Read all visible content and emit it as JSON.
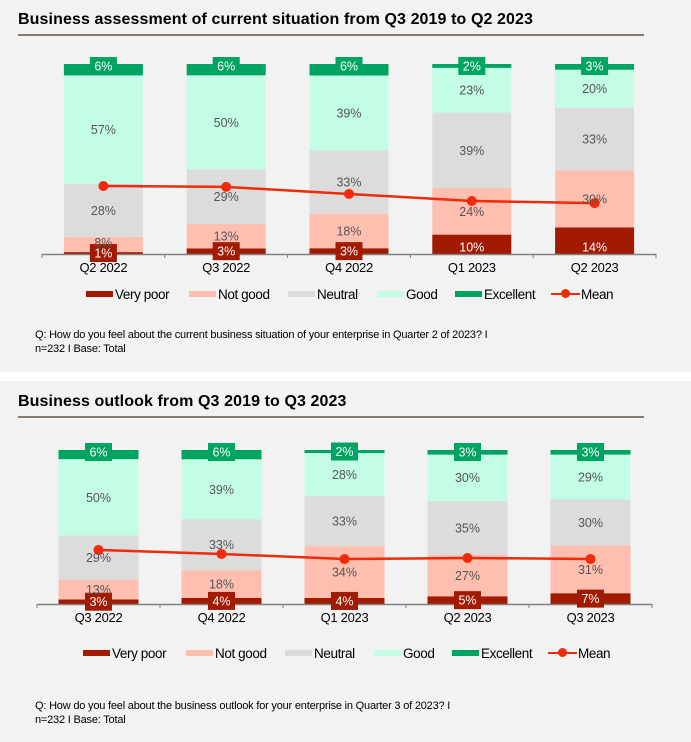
{
  "colors": {
    "very_poor": "#a21a00",
    "not_good": "#ffbfb0",
    "neutral": "#dcdcdc",
    "good": "#c3fde5",
    "excellent": "#00a462",
    "mean": "#f02a0a",
    "label_dark": "#555555",
    "label_light": "#ffffff"
  },
  "legend": [
    {
      "key": "very_poor",
      "label": "Very poor"
    },
    {
      "key": "not_good",
      "label": "Not good"
    },
    {
      "key": "neutral",
      "label": "Neutral"
    },
    {
      "key": "good",
      "label": "Good"
    },
    {
      "key": "excellent",
      "label": "Excellent"
    },
    {
      "key": "mean",
      "label": "Mean"
    }
  ],
  "panels": [
    {
      "title": "Business assessment of current situation from Q3 2019 to Q2 2023",
      "footnote": [
        "Q: How do you feel about the current business situation of your enterprise in Quarter 2 of 2023? I",
        "n=232 I Base: Total"
      ]
    },
    {
      "title": "Business outlook from Q3 2019 to Q3 2023",
      "footnote": [
        "Q: How do you feel about the business outlook for your enterprise in Quarter 3 of 2023? I",
        "n=232 I Base: Total"
      ]
    }
  ],
  "chart_data": [
    {
      "type": "bar",
      "stacked": true,
      "title": "Business assessment of current situation from Q3 2019 to Q2 2023",
      "xlabel": "",
      "ylabel": "",
      "ylim": [
        0,
        100
      ],
      "grid": false,
      "legend_position": "bottom",
      "categories": [
        "Q2 2022",
        "Q3 2022",
        "Q4 2022",
        "Q1 2023",
        "Q2 2023"
      ],
      "series": [
        {
          "name": "Very poor",
          "key": "very_poor",
          "values": [
            1,
            3,
            3,
            10,
            14
          ]
        },
        {
          "name": "Not good",
          "key": "not_good",
          "values": [
            8,
            13,
            18,
            24,
            30
          ]
        },
        {
          "name": "Neutral",
          "key": "neutral",
          "values": [
            28,
            29,
            33,
            39,
            33
          ]
        },
        {
          "name": "Good",
          "key": "good",
          "values": [
            57,
            50,
            39,
            23,
            20
          ]
        },
        {
          "name": "Excellent",
          "key": "excellent",
          "values": [
            6,
            6,
            6,
            2,
            3
          ]
        }
      ],
      "line_series": {
        "name": "Mean",
        "type": "line",
        "values_pct_of_axis": [
          35.8,
          35.3,
          31.6,
          27.9,
          26.8
        ]
      }
    },
    {
      "type": "bar",
      "stacked": true,
      "title": "Business outlook from Q3 2019 to Q3 2023",
      "xlabel": "",
      "ylabel": "",
      "ylim": [
        0,
        100
      ],
      "grid": false,
      "legend_position": "bottom",
      "categories": [
        "Q3 2022",
        "Q4 2022",
        "Q1 2023",
        "Q2 2023",
        "Q3 2023"
      ],
      "series": [
        {
          "name": "Very poor",
          "key": "very_poor",
          "values": [
            3,
            4,
            4,
            5,
            7
          ]
        },
        {
          "name": "Not good",
          "key": "not_good",
          "values": [
            13,
            18,
            34,
            27,
            31
          ]
        },
        {
          "name": "Neutral",
          "key": "neutral",
          "values": [
            29,
            33,
            33,
            35,
            30
          ]
        },
        {
          "name": "Good",
          "key": "good",
          "values": [
            50,
            39,
            28,
            30,
            29
          ]
        },
        {
          "name": "Excellent",
          "key": "excellent",
          "values": [
            6,
            6,
            2,
            3,
            3
          ]
        }
      ],
      "line_series": {
        "name": "Mean",
        "type": "line",
        "values_pct_of_axis": [
          35.1,
          32.5,
          29.2,
          29.9,
          29.2
        ]
      }
    }
  ]
}
